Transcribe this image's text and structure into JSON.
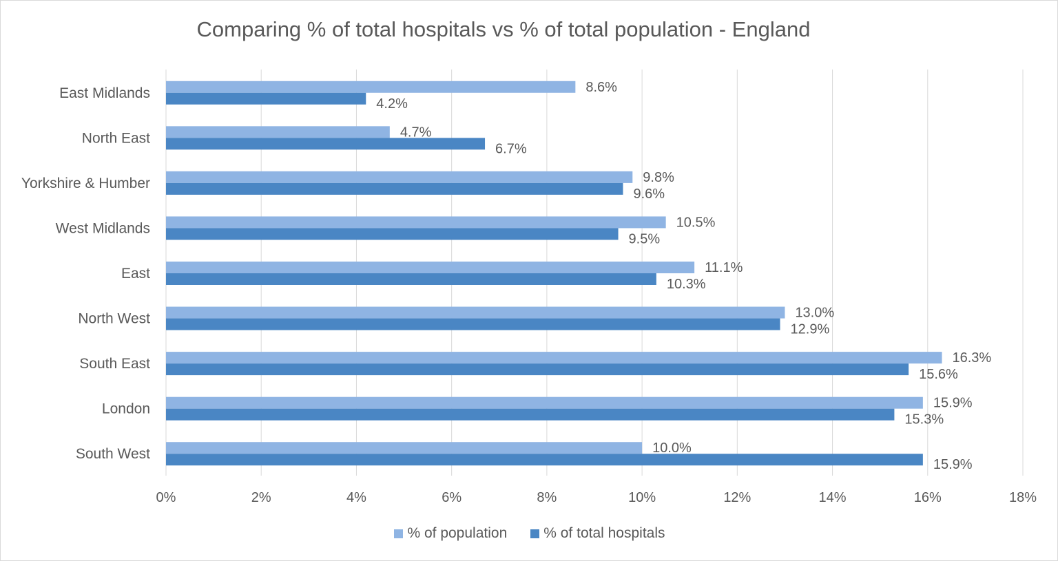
{
  "chart_data": {
    "type": "bar",
    "orientation": "horizontal",
    "title": "Comparing % of total hospitals vs % of total population - England",
    "categories": [
      "East Midlands",
      "North East",
      "Yorkshire & Humber",
      "West Midlands",
      "East",
      "North West",
      "South East",
      "London",
      "South West"
    ],
    "series": [
      {
        "name": "% of population",
        "color": "#8fb4e3",
        "values": [
          8.6,
          4.7,
          9.8,
          10.5,
          11.1,
          13.0,
          16.3,
          15.9,
          10.0
        ],
        "labels": [
          "8.6%",
          "4.7%",
          "9.8%",
          "10.5%",
          "11.1%",
          "13.0%",
          "16.3%",
          "15.9%",
          "10.0%"
        ]
      },
      {
        "name": "% of total hospitals",
        "color": "#4a86c4",
        "values": [
          4.2,
          6.7,
          9.6,
          9.5,
          10.3,
          12.9,
          15.6,
          15.3,
          15.9
        ],
        "labels": [
          "4.2%",
          "6.7%",
          "9.6%",
          "9.5%",
          "10.3%",
          "12.9%",
          "15.6%",
          "15.3%",
          "15.9%"
        ]
      }
    ],
    "xlim": [
      0,
      18
    ],
    "xticks": [
      "0%",
      "2%",
      "4%",
      "6%",
      "8%",
      "10%",
      "12%",
      "14%",
      "16%",
      "18%"
    ],
    "grid": true,
    "legend": "bottom"
  }
}
